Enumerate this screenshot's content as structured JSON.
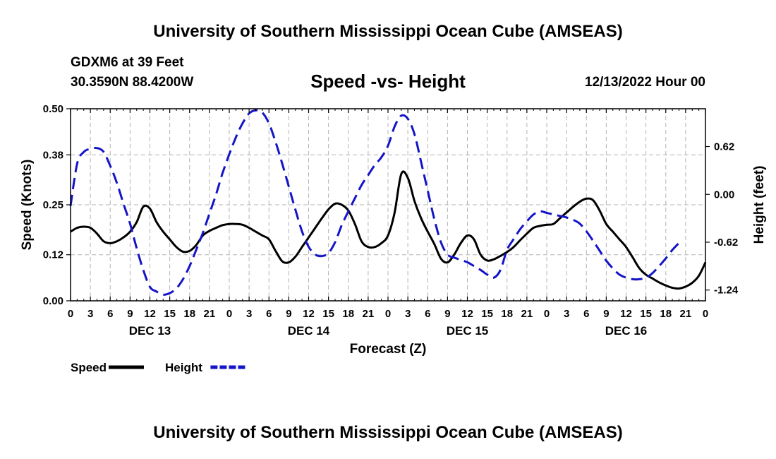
{
  "header": {
    "title": "University of Southern Mississippi Ocean Cube (AMSEAS)",
    "station": "GDXM6 at 39 Feet",
    "coords": "30.3590N  88.4200W",
    "subtitle": "Speed -vs- Height",
    "datetime": "12/13/2022 Hour 00"
  },
  "footer": {
    "title": "University of Southern Mississippi Ocean Cube (AMSEAS)"
  },
  "chart_data": {
    "type": "line",
    "xlabel": "Forecast (Z)",
    "ylabel": "Speed (Knots)",
    "y2label": "Height (feet)",
    "x_range_hours": [
      0,
      96
    ],
    "ylim": [
      0,
      0.5
    ],
    "y2lim": [
      -1.38,
      1.11
    ],
    "yticks": [
      0.0,
      0.12,
      0.25,
      0.38,
      0.5
    ],
    "ytick_labels": [
      "0.00",
      "0.12",
      "0.25",
      "0.38",
      "0.50"
    ],
    "y2ticks": [
      0.62,
      0.0,
      -0.62,
      -1.24
    ],
    "y2tick_labels": [
      "0.62",
      "0.00",
      "-0.62",
      "-1.24"
    ],
    "xtick_labels": [
      "0",
      "3",
      "6",
      "9",
      "12",
      "15",
      "18",
      "21",
      "0",
      "3",
      "6",
      "9",
      "12",
      "15",
      "18",
      "21",
      "0",
      "3",
      "6",
      "9",
      "12",
      "15",
      "18",
      "21",
      "0",
      "3",
      "6",
      "9",
      "12",
      "15",
      "18",
      "21",
      "0"
    ],
    "day_labels": [
      {
        "label": "DEC 13",
        "hour": 12
      },
      {
        "label": "DEC 14",
        "hour": 36
      },
      {
        "label": "DEC 15",
        "hour": 60
      },
      {
        "label": "DEC 16",
        "hour": 84
      }
    ],
    "grid": true,
    "legend": [
      {
        "name": "Speed",
        "color": "#000000",
        "dash": "solid"
      },
      {
        "name": "Height",
        "color": "#1414c8",
        "dash": "dashed"
      }
    ],
    "series": [
      {
        "name": "Speed",
        "axis": "left",
        "color": "#000000",
        "points": [
          [
            0,
            0.18
          ],
          [
            1,
            0.19
          ],
          [
            2,
            0.193
          ],
          [
            3,
            0.19
          ],
          [
            4,
            0.175
          ],
          [
            5,
            0.155
          ],
          [
            6,
            0.15
          ],
          [
            7,
            0.155
          ],
          [
            8,
            0.165
          ],
          [
            9,
            0.18
          ],
          [
            10,
            0.205
          ],
          [
            11,
            0.245
          ],
          [
            12,
            0.24
          ],
          [
            13,
            0.205
          ],
          [
            14,
            0.18
          ],
          [
            15,
            0.16
          ],
          [
            16,
            0.14
          ],
          [
            17,
            0.128
          ],
          [
            18,
            0.13
          ],
          [
            19,
            0.145
          ],
          [
            20,
            0.17
          ],
          [
            21,
            0.182
          ],
          [
            22,
            0.19
          ],
          [
            23,
            0.197
          ],
          [
            24,
            0.2
          ],
          [
            25,
            0.2
          ],
          [
            26,
            0.198
          ],
          [
            27,
            0.19
          ],
          [
            28,
            0.18
          ],
          [
            29,
            0.17
          ],
          [
            30,
            0.16
          ],
          [
            31,
            0.13
          ],
          [
            32,
            0.103
          ],
          [
            33,
            0.1
          ],
          [
            34,
            0.115
          ],
          [
            35,
            0.14
          ],
          [
            36,
            0.165
          ],
          [
            37,
            0.19
          ],
          [
            38,
            0.215
          ],
          [
            39,
            0.238
          ],
          [
            40,
            0.253
          ],
          [
            41,
            0.25
          ],
          [
            42,
            0.235
          ],
          [
            43,
            0.2
          ],
          [
            44,
            0.155
          ],
          [
            45,
            0.14
          ],
          [
            46,
            0.14
          ],
          [
            47,
            0.15
          ],
          [
            48,
            0.17
          ],
          [
            49,
            0.23
          ],
          [
            50,
            0.33
          ],
          [
            51,
            0.32
          ],
          [
            52,
            0.26
          ],
          [
            53,
            0.215
          ],
          [
            54,
            0.18
          ],
          [
            55,
            0.148
          ],
          [
            56,
            0.11
          ],
          [
            57,
            0.1
          ],
          [
            58,
            0.12
          ],
          [
            59,
            0.15
          ],
          [
            60,
            0.17
          ],
          [
            61,
            0.16
          ],
          [
            62,
            0.12
          ],
          [
            63,
            0.105
          ],
          [
            64,
            0.108
          ],
          [
            65,
            0.117
          ],
          [
            66,
            0.127
          ],
          [
            67,
            0.14
          ],
          [
            68,
            0.158
          ],
          [
            69,
            0.175
          ],
          [
            70,
            0.19
          ],
          [
            71,
            0.195
          ],
          [
            72,
            0.198
          ],
          [
            73,
            0.2
          ],
          [
            74,
            0.215
          ],
          [
            75,
            0.23
          ],
          [
            76,
            0.245
          ],
          [
            77,
            0.258
          ],
          [
            78,
            0.266
          ],
          [
            79,
            0.262
          ],
          [
            80,
            0.235
          ],
          [
            81,
            0.2
          ],
          [
            82,
            0.18
          ],
          [
            83,
            0.16
          ],
          [
            84,
            0.14
          ],
          [
            85,
            0.113
          ],
          [
            86,
            0.085
          ],
          [
            87,
            0.068
          ],
          [
            88,
            0.058
          ],
          [
            89,
            0.048
          ],
          [
            90,
            0.04
          ],
          [
            91,
            0.034
          ],
          [
            92,
            0.032
          ],
          [
            93,
            0.037
          ],
          [
            94,
            0.047
          ],
          [
            95,
            0.065
          ],
          [
            96,
            0.1
          ]
        ]
      },
      {
        "name": "Height",
        "axis": "right",
        "color": "#1414c8",
        "points": [
          [
            0,
            -0.15
          ],
          [
            1,
            0.4
          ],
          [
            2,
            0.55
          ],
          [
            3,
            0.59
          ],
          [
            4,
            0.6
          ],
          [
            5,
            0.55
          ],
          [
            6,
            0.37
          ],
          [
            7,
            0.15
          ],
          [
            8,
            -0.12
          ],
          [
            9,
            -0.38
          ],
          [
            10,
            -0.7
          ],
          [
            11,
            -0.98
          ],
          [
            12,
            -1.2
          ],
          [
            13,
            -1.26
          ],
          [
            14,
            -1.3
          ],
          [
            15,
            -1.28
          ],
          [
            16,
            -1.22
          ],
          [
            17,
            -1.1
          ],
          [
            18,
            -0.93
          ],
          [
            19,
            -0.72
          ],
          [
            20,
            -0.5
          ],
          [
            21,
            -0.25
          ],
          [
            22,
            0.0
          ],
          [
            23,
            0.28
          ],
          [
            24,
            0.52
          ],
          [
            25,
            0.74
          ],
          [
            26,
            0.92
          ],
          [
            27,
            1.05
          ],
          [
            28,
            1.09
          ],
          [
            29,
            1.06
          ],
          [
            30,
            0.92
          ],
          [
            31,
            0.68
          ],
          [
            32,
            0.4
          ],
          [
            33,
            0.1
          ],
          [
            34,
            -0.2
          ],
          [
            35,
            -0.48
          ],
          [
            36,
            -0.68
          ],
          [
            37,
            -0.78
          ],
          [
            38,
            -0.8
          ],
          [
            39,
            -0.76
          ],
          [
            40,
            -0.62
          ],
          [
            41,
            -0.4
          ],
          [
            42,
            -0.22
          ],
          [
            43,
            -0.05
          ],
          [
            44,
            0.12
          ],
          [
            45,
            0.25
          ],
          [
            46,
            0.38
          ],
          [
            47,
            0.48
          ],
          [
            48,
            0.63
          ],
          [
            49,
            0.88
          ],
          [
            50,
            1.02
          ],
          [
            51,
            0.98
          ],
          [
            52,
            0.78
          ],
          [
            53,
            0.42
          ],
          [
            54,
            0.05
          ],
          [
            55,
            -0.32
          ],
          [
            56,
            -0.62
          ],
          [
            57,
            -0.78
          ],
          [
            58,
            -0.82
          ],
          [
            59,
            -0.85
          ],
          [
            60,
            -0.88
          ],
          [
            61,
            -0.93
          ],
          [
            62,
            -0.98
          ],
          [
            63,
            -1.04
          ],
          [
            64,
            -1.08
          ],
          [
            65,
            -0.98
          ],
          [
            66,
            -0.72
          ],
          [
            67,
            -0.58
          ],
          [
            68,
            -0.45
          ],
          [
            69,
            -0.35
          ],
          [
            70,
            -0.26
          ],
          [
            71,
            -0.22
          ],
          [
            72,
            -0.24
          ],
          [
            73,
            -0.26
          ],
          [
            74,
            -0.28
          ],
          [
            75,
            -0.3
          ],
          [
            76,
            -0.33
          ],
          [
            77,
            -0.38
          ],
          [
            78,
            -0.48
          ],
          [
            79,
            -0.6
          ],
          [
            80,
            -0.73
          ],
          [
            81,
            -0.86
          ],
          [
            82,
            -0.96
          ],
          [
            83,
            -1.04
          ],
          [
            84,
            -1.08
          ],
          [
            85,
            -1.1
          ],
          [
            86,
            -1.1
          ],
          [
            87,
            -1.08
          ],
          [
            88,
            -1.02
          ],
          [
            89,
            -0.93
          ],
          [
            90,
            -0.83
          ],
          [
            91,
            -0.72
          ],
          [
            92,
            -0.63
          ]
        ]
      }
    ]
  }
}
